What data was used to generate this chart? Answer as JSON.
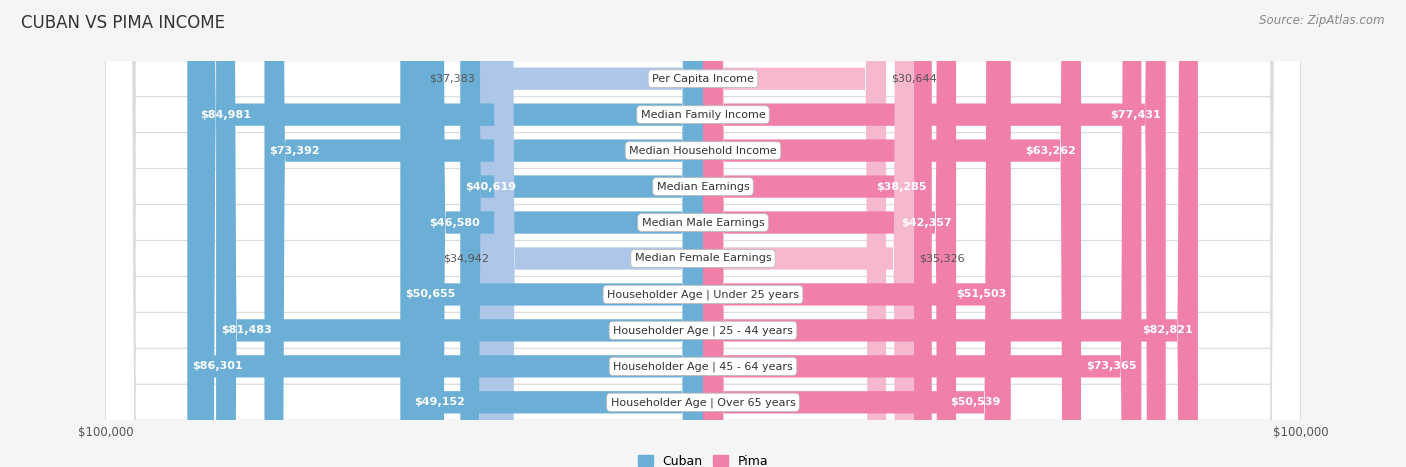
{
  "title": "CUBAN VS PIMA INCOME",
  "source": "Source: ZipAtlas.com",
  "categories": [
    "Per Capita Income",
    "Median Family Income",
    "Median Household Income",
    "Median Earnings",
    "Median Male Earnings",
    "Median Female Earnings",
    "Householder Age | Under 25 years",
    "Householder Age | 25 - 44 years",
    "Householder Age | 45 - 64 years",
    "Householder Age | Over 65 years"
  ],
  "cuban_values": [
    37383,
    84981,
    73392,
    40619,
    46580,
    34942,
    50655,
    81483,
    86301,
    49152
  ],
  "pima_values": [
    30644,
    77431,
    63262,
    38285,
    42357,
    35326,
    51503,
    82821,
    73365,
    50539
  ],
  "max_value": 100000,
  "cuban_color_light": "#aec6e8",
  "cuban_color_dark": "#6baed6",
  "pima_color_light": "#f5b8cf",
  "pima_color_dark": "#f07faa",
  "row_bg_color": "#f0f0f0",
  "row_border_color": "#dddddd",
  "background_color": "#f5f5f5",
  "title_fontsize": 12,
  "source_fontsize": 8.5,
  "value_fontsize": 8,
  "category_fontsize": 8
}
